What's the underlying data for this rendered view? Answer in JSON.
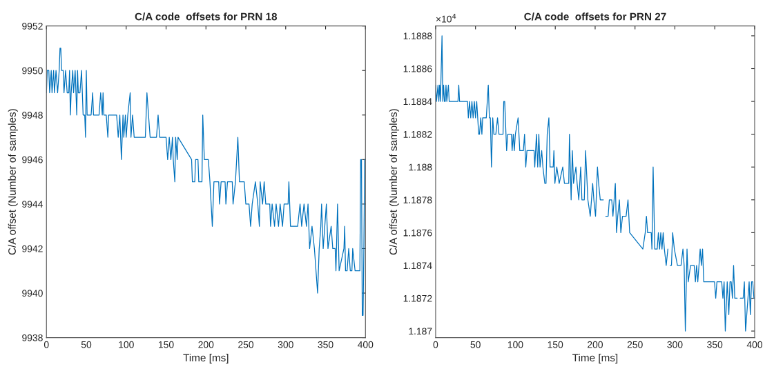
{
  "chart_data": [
    {
      "type": "line",
      "title": "C/A code  offsets for PRN 18",
      "xlabel": "Time [ms]",
      "ylabel": "C/A offset (Number of samples)",
      "xlim": [
        0,
        400
      ],
      "xticks": [
        0,
        50,
        100,
        150,
        200,
        250,
        300,
        350,
        400
      ],
      "ylim": [
        9938,
        9952
      ],
      "yticks": [
        9938,
        9940,
        9942,
        9944,
        9946,
        9948,
        9950,
        9952
      ],
      "grid": false,
      "series": [
        {
          "color": "#0072bd",
          "x": [
            0,
            1,
            3,
            4,
            6,
            7,
            9,
            10,
            12,
            14,
            16,
            17,
            18,
            19,
            21,
            22,
            24,
            26,
            28,
            29,
            30,
            31,
            33,
            34,
            36,
            37,
            38,
            39,
            40,
            42,
            44,
            46,
            48,
            49,
            50,
            51,
            56,
            58,
            59,
            66,
            68,
            70,
            71,
            72,
            75,
            77,
            78,
            88,
            90,
            92,
            94,
            96,
            97,
            99,
            100,
            102,
            105,
            106,
            108,
            110,
            124,
            126,
            128,
            130,
            138,
            140,
            142,
            150,
            152,
            154,
            156,
            158,
            159,
            161,
            162,
            164,
            165,
            182,
            183,
            186,
            187,
            190,
            191,
            195,
            196,
            198,
            202,
            203,
            205,
            208,
            210,
            216,
            217,
            219,
            224,
            225,
            227,
            233,
            234,
            237,
            240,
            242,
            248,
            250,
            254,
            256,
            258,
            262,
            265,
            267,
            268,
            271,
            273,
            275,
            280,
            281,
            283,
            286,
            288,
            291,
            293,
            296,
            298,
            303,
            304,
            306,
            315,
            318,
            320,
            323,
            326,
            328,
            330,
            333,
            336,
            340,
            342,
            344,
            345,
            347,
            351,
            353,
            357,
            359,
            362,
            363,
            365,
            367,
            373,
            374,
            375,
            377,
            379,
            381,
            383,
            384,
            387,
            390,
            393,
            394,
            395,
            396,
            397,
            398,
            399,
            400
          ],
          "values": [
            9949,
            9950,
            9950,
            9949,
            9950,
            9949,
            9950,
            9949,
            9950,
            9949,
            9950,
            9951,
            9951,
            9950,
            9950,
            9949,
            9950,
            9949,
            9949,
            9950,
            9948,
            9949,
            9950,
            9949,
            9950,
            9949,
            9948,
            9950,
            9949,
            9949,
            9950,
            9948,
            9948,
            9947,
            9950,
            9948,
            9948,
            9949,
            9948,
            9948,
            9949,
            9948,
            9949,
            9948,
            9948,
            9947,
            9948,
            9948,
            9947,
            9948,
            9946,
            9948,
            9947,
            9948,
            9947,
            9948,
            9949,
            9947,
            9948,
            9947,
            9947,
            9949,
            9948,
            9947,
            9947,
            9948,
            9947,
            9947,
            9946,
            9947,
            9946,
            9947,
            9946,
            9945,
            9947,
            9946,
            9947,
            9946,
            9945,
            9945,
            9946,
            9946,
            9945,
            9945,
            9948,
            9946,
            9946,
            9946,
            9945,
            9943,
            9945,
            9945,
            9944,
            9945,
            9945,
            9944,
            9945,
            9945,
            9944,
            9945,
            9947,
            9945,
            9945,
            9944,
            9944,
            9943,
            9944,
            9945,
            9944,
            9943,
            9945,
            9944,
            9945,
            9944,
            9944,
            9943,
            9944,
            9943,
            9944,
            9943,
            9944,
            9943,
            9944,
            9944,
            9945,
            9943,
            9943,
            9944,
            9943,
            9944,
            9943,
            9944,
            9942,
            9943,
            9942,
            9940,
            9942,
            9943,
            9944,
            9942,
            9944,
            9942,
            9943,
            9942,
            9942,
            9941,
            9944,
            9941,
            9942,
            9943,
            9941,
            9941,
            9942,
            9941,
            9941,
            9942,
            9941,
            9941,
            9941,
            9946,
            9946,
            9939,
            9939,
            9942,
            9946,
            9946
          ]
        }
      ]
    },
    {
      "type": "line",
      "title": "C/A code  offsets for PRN 27",
      "xlabel": "Time [ms]",
      "ylabel": "C/A offset (Number of samples)",
      "annotations": [
        "×10$^{4}$"
      ],
      "xlim": [
        0,
        400
      ],
      "xticks": [
        0,
        50,
        100,
        150,
        200,
        250,
        300,
        350,
        400
      ],
      "ylim": [
        1.18696,
        1.18886
      ],
      "yticks": [
        1.187,
        1.1872,
        1.1874,
        1.1876,
        1.1878,
        1.188,
        1.1882,
        1.1884,
        1.1886,
        1.1888
      ],
      "grid": false,
      "series": [
        {
          "color": "#0072bd",
          "x": [
            0,
            1,
            3,
            4,
            5,
            6,
            8,
            9,
            10,
            11,
            12,
            13,
            14,
            16,
            17,
            28,
            29,
            30,
            40,
            41,
            42.5,
            44,
            45.5,
            47,
            48.5,
            50,
            51.5,
            54,
            55,
            56.6,
            58,
            59,
            63.5,
            66,
            67.4,
            68.6,
            70,
            71.6,
            73,
            75.5,
            77.6,
            79.4,
            84.5,
            85.4,
            86.6,
            89,
            90.5,
            95,
            95.9,
            97.4,
            98.6,
            100,
            103.4,
            105.5,
            110,
            111.5,
            113,
            114.5,
            123.4,
            124.3,
            126.4,
            128,
            129.4,
            130.9,
            133,
            134.5,
            136.9,
            138.4,
            139.9,
            142,
            143.5,
            147.4,
            148.3,
            149.5,
            151.9,
            154.9,
            159.4,
            161.5,
            166.9,
            167.8,
            169.9,
            171.4,
            172.9,
            175.9,
            177.4,
            179.5,
            181.9,
            183.4,
            186.4,
            188,
            190.9,
            193.9,
            196.9,
            198.4,
            200.5,
            202.9,
            204.4,
            206.4,
            210.3,
            211.8,
            213.3,
            216.3,
            217.8,
            220.8,
            222.3,
            223.8,
            225.3,
            226.8,
            228.3,
            230.4,
            232.2,
            234.3,
            238.8,
            241.2,
            243.3,
            259.8,
            262.8,
            264.3,
            265.8,
            270.3,
            271.2,
            272.7,
            274.8,
            277.8,
            279.3,
            280.8,
            282.3,
            283.8,
            285.3,
            286.8,
            289.1,
            291.2,
            292.7,
            294.2,
            295.7,
            297.2,
            299.3,
            303.2,
            307.7,
            310.1,
            311.6,
            313.1,
            315.2,
            316.7,
            319.7,
            324.2,
            325.7,
            327.2,
            328.7,
            331.7,
            333.2,
            334.7,
            336.2,
            349.7,
            351.2,
            352.7,
            358.7,
            360.2,
            361.7,
            363.2,
            365.6,
            367.6,
            369.1,
            370.6,
            372.1,
            373.6,
            375.1,
            378.1,
            379.6,
            382,
            385.6,
            387.1,
            388.6,
            391.6,
            393.1,
            394.6,
            396.1,
            397.6,
            399.1,
            400
          ],
          "values": [
            1.1885,
            1.1884,
            1.1885,
            1.1884,
            1.1885,
            1.1884,
            1.1888,
            1.1884,
            1.1885,
            1.1884,
            1.1884,
            1.1885,
            1.1884,
            1.1885,
            1.1884,
            1.1884,
            1.1885,
            1.1884,
            1.1884,
            1.1883,
            1.1884,
            1.1883,
            1.1884,
            1.1883,
            1.1884,
            1.1883,
            1.1884,
            1.1882,
            1.1882,
            1.1883,
            1.1882,
            1.1883,
            1.1883,
            1.1885,
            1.1883,
            1.1883,
            1.188,
            1.1883,
            1.1882,
            1.1882,
            1.1883,
            1.1882,
            1.1882,
            1.1884,
            1.1884,
            1.1881,
            1.1882,
            1.1882,
            1.1881,
            1.1882,
            1.1881,
            1.1882,
            1.1883,
            1.1881,
            1.1881,
            1.1882,
            1.188,
            1.1881,
            1.1881,
            1.188,
            1.1882,
            1.188,
            1.1882,
            1.188,
            1.1881,
            1.188,
            1.1879,
            1.1879,
            1.1882,
            1.1883,
            1.188,
            1.188,
            1.1881,
            1.1879,
            1.188,
            1.1879,
            1.188,
            1.1879,
            1.1879,
            1.1882,
            1.1878,
            1.1881,
            1.1879,
            1.188,
            1.1879,
            1.1878,
            1.188,
            1.1878,
            1.1878,
            1.1881,
            1.1878,
            1.1877,
            1.1879,
            1.1878,
            1.1877,
            1.188,
            1.1879,
            1.1878,
            1.1878,
            null,
            1.1877,
            1.1877,
            1.1878,
            1.1878,
            1.1877,
            1.1878,
            1.1879,
            1.1876,
            1.1877,
            1.1878,
            1.1876,
            1.1877,
            1.1877,
            1.1878,
            1.1876,
            1.1875,
            1.1876,
            1.1877,
            1.1876,
            1.1876,
            1.1875,
            1.188,
            1.1875,
            1.1875,
            1.1876,
            1.1875,
            1.1876,
            1.1875,
            1.1876,
            1.1875,
            1.1874,
            1.1875,
            null,
            1.1874,
            1.1874,
            1.1876,
            1.1875,
            1.1874,
            1.1874,
            1.1875,
            1.1874,
            1.187,
            1.1875,
            1.1873,
            1.1874,
            1.1874,
            1.1873,
            1.1874,
            1.1873,
            1.1875,
            1.1874,
            1.1875,
            1.1873,
            1.1873,
            1.1872,
            1.1873,
            1.1873,
            1.1872,
            1.1873,
            1.187,
            1.1873,
            1.1871,
            1.1873,
            1.1873,
            1.1872,
            1.1874,
            1.1872,
            1.1872,
            null,
            1.1872,
            1.1872,
            1.1873,
            1.187,
            1.1872,
            1.1873,
            1.1871,
            1.1873,
            1.1873,
            1.1872,
            1.1872
          ]
        }
      ]
    }
  ]
}
